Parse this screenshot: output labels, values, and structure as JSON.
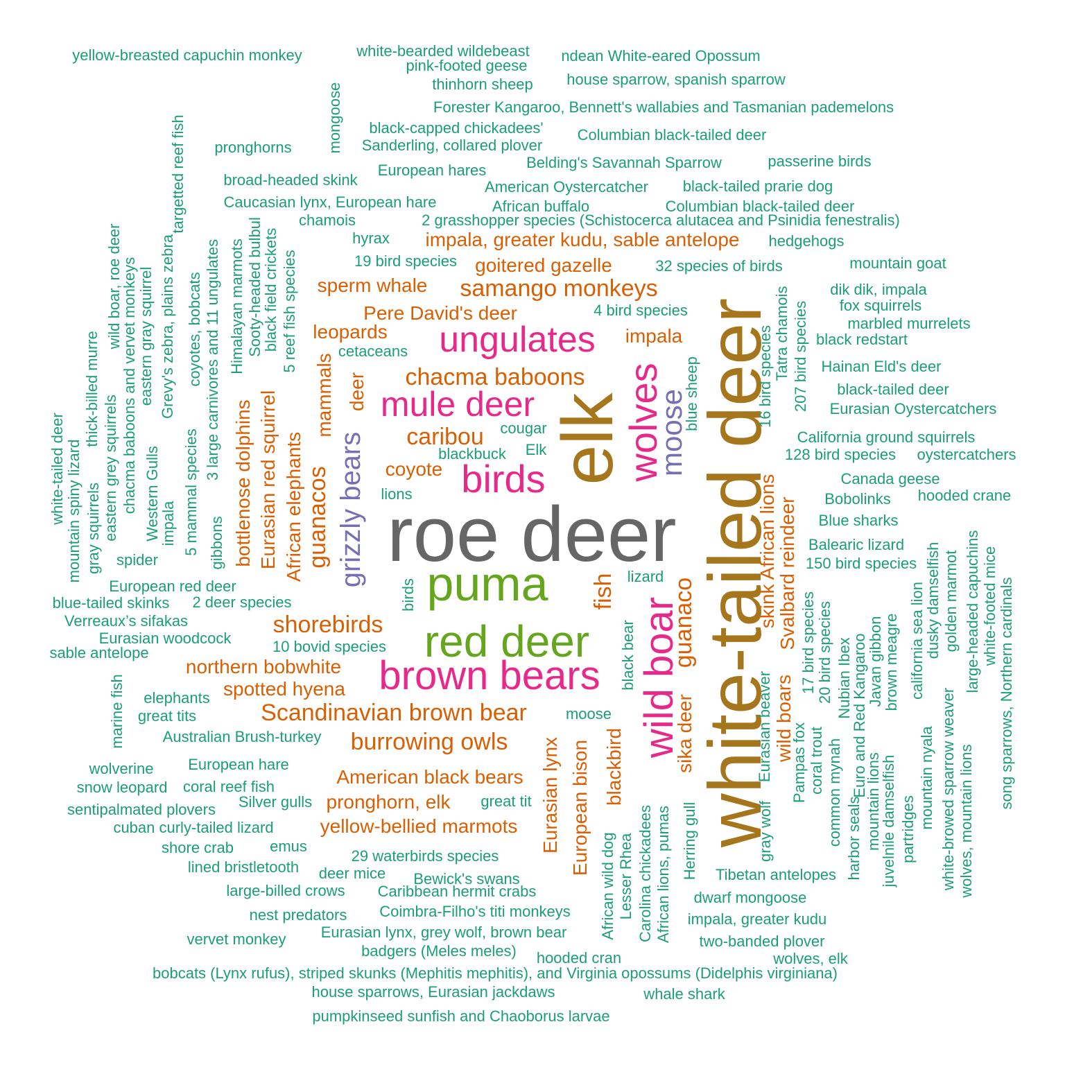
{
  "palette": {
    "grey": "#666666",
    "olive": "#A6761D",
    "green": "#66A61E",
    "pink": "#E7298A",
    "purple": "#7570B3",
    "orange": "#D95F02",
    "teal": "#1B9E77"
  },
  "words": [
    {
      "text": "roe deer",
      "color": "grey",
      "weight": 1.0
    },
    {
      "text": "white-tailed deer",
      "color": "olive",
      "weight": 0.95
    },
    {
      "text": "elk",
      "color": "olive",
      "weight": 0.92
    },
    {
      "text": "puma",
      "color": "green",
      "weight": 0.62
    },
    {
      "text": "red deer",
      "color": "green",
      "weight": 0.58
    },
    {
      "text": "wild boar",
      "color": "pink",
      "weight": 0.55
    },
    {
      "text": "wolves",
      "color": "pink",
      "weight": 0.52
    },
    {
      "text": "brown bears",
      "color": "pink",
      "weight": 0.52
    },
    {
      "text": "birds",
      "color": "pink",
      "weight": 0.5
    },
    {
      "text": "ungulates",
      "color": "pink",
      "weight": 0.46
    },
    {
      "text": "mule deer",
      "color": "pink",
      "weight": 0.45
    },
    {
      "text": "moose",
      "color": "purple",
      "weight": 0.36
    },
    {
      "text": "grizzly bears",
      "color": "purple",
      "weight": 0.36
    },
    {
      "text": "samango monkeys",
      "color": "orange",
      "weight": 0.3
    },
    {
      "text": "chacma baboons",
      "color": "orange",
      "weight": 0.3
    },
    {
      "text": "Scandinavian brown bear",
      "color": "orange",
      "weight": 0.3
    },
    {
      "text": "caribou",
      "color": "orange",
      "weight": 0.3
    },
    {
      "text": "shorebirds",
      "color": "orange",
      "weight": 0.3
    },
    {
      "text": "burrowing owls",
      "color": "orange",
      "weight": 0.3
    },
    {
      "text": "guanacos",
      "color": "orange",
      "weight": 0.3
    },
    {
      "text": "guanaco",
      "color": "orange",
      "weight": 0.3
    },
    {
      "text": "fish",
      "color": "orange",
      "weight": 0.3
    },
    {
      "text": "impala, greater kudu, sable antelope",
      "color": "orange",
      "weight": 0.25
    },
    {
      "text": "goitered gazelle",
      "color": "orange",
      "weight": 0.25
    },
    {
      "text": "sperm whale",
      "color": "orange",
      "weight": 0.25
    },
    {
      "text": "Pere David's deer",
      "color": "orange",
      "weight": 0.25
    },
    {
      "text": "leopards",
      "color": "orange",
      "weight": 0.25
    },
    {
      "text": "impala",
      "color": "orange",
      "weight": 0.25
    },
    {
      "text": "coyote",
      "color": "orange",
      "weight": 0.25
    },
    {
      "text": "northern bobwhite",
      "color": "orange",
      "weight": 0.25
    },
    {
      "text": "spotted hyena",
      "color": "orange",
      "weight": 0.25
    },
    {
      "text": "American black bears",
      "color": "orange",
      "weight": 0.25
    },
    {
      "text": "pronghorn, elk",
      "color": "orange",
      "weight": 0.25
    },
    {
      "text": "yellow-bellied marmots",
      "color": "orange",
      "weight": 0.25
    },
    {
      "text": "mammals",
      "color": "orange",
      "weight": 0.25
    },
    {
      "text": "deer",
      "color": "orange",
      "weight": 0.25
    },
    {
      "text": "bottlenose dolphins",
      "color": "orange",
      "weight": 0.25
    },
    {
      "text": "Eurasian red squirrel",
      "color": "orange",
      "weight": 0.25
    },
    {
      "text": "African elephants",
      "color": "orange",
      "weight": 0.25
    },
    {
      "text": "Eurasian lynx",
      "color": "orange",
      "weight": 0.25
    },
    {
      "text": "European bison",
      "color": "orange",
      "weight": 0.25
    },
    {
      "text": "blackbird",
      "color": "orange",
      "weight": 0.25
    },
    {
      "text": "sika deer",
      "color": "orange",
      "weight": 0.25
    },
    {
      "text": "skink African lions",
      "color": "orange",
      "weight": 0.25
    },
    {
      "text": "Svalbard reindeer",
      "color": "orange",
      "weight": 0.25
    },
    {
      "text": "wild boars",
      "color": "orange",
      "weight": 0.25
    },
    {
      "text": "yellow-breasted capuchin monkey",
      "color": "teal",
      "weight": 0.1
    },
    {
      "text": "white-bearded wildebeast",
      "color": "teal",
      "weight": 0.1
    },
    {
      "text": "ndean White-eared Opossum",
      "color": "teal",
      "weight": 0.1
    },
    {
      "text": "pink-footed geese",
      "color": "teal",
      "weight": 0.1
    },
    {
      "text": "house sparrow, spanish sparrow",
      "color": "teal",
      "weight": 0.1
    },
    {
      "text": "thinhorn sheep",
      "color": "teal",
      "weight": 0.1
    },
    {
      "text": "Forester Kangaroo, Bennett's wallabies and Tasmanian pademelons",
      "color": "teal",
      "weight": 0.1
    },
    {
      "text": "black-capped chickadees'",
      "color": "teal",
      "weight": 0.1
    },
    {
      "text": "Columbian black-tailed deer",
      "color": "teal",
      "weight": 0.1
    },
    {
      "text": "Sanderling, collared plover",
      "color": "teal",
      "weight": 0.1
    },
    {
      "text": "pronghorns",
      "color": "teal",
      "weight": 0.1
    },
    {
      "text": "Belding's Savannah Sparrow",
      "color": "teal",
      "weight": 0.1
    },
    {
      "text": "passerine birds",
      "color": "teal",
      "weight": 0.1
    },
    {
      "text": "European hares",
      "color": "teal",
      "weight": 0.1
    },
    {
      "text": "broad-headed skink",
      "color": "teal",
      "weight": 0.1
    },
    {
      "text": "American Oystercatcher",
      "color": "teal",
      "weight": 0.1
    },
    {
      "text": "black-tailed prarie dog",
      "color": "teal",
      "weight": 0.1
    },
    {
      "text": "Caucasian lynx, European hare",
      "color": "teal",
      "weight": 0.1
    },
    {
      "text": "African buffalo",
      "color": "teal",
      "weight": 0.1
    },
    {
      "text": "Columbian black-tailed deer",
      "color": "teal",
      "weight": 0.1
    },
    {
      "text": "chamois",
      "color": "teal",
      "weight": 0.1
    },
    {
      "text": "2 grasshopper species (Schistocerca alutacea and Psinidia fenestralis)",
      "color": "teal",
      "weight": 0.1
    },
    {
      "text": "hyrax",
      "color": "teal",
      "weight": 0.1
    },
    {
      "text": "hedgehogs",
      "color": "teal",
      "weight": 0.1
    },
    {
      "text": "19 bird species",
      "color": "teal",
      "weight": 0.1
    },
    {
      "text": "32 species of birds",
      "color": "teal",
      "weight": 0.1
    },
    {
      "text": "mountain goat",
      "color": "teal",
      "weight": 0.1
    },
    {
      "text": "dik dik, impala",
      "color": "teal",
      "weight": 0.1
    },
    {
      "text": "fox squirrels",
      "color": "teal",
      "weight": 0.1
    },
    {
      "text": "4 bird species",
      "color": "teal",
      "weight": 0.1
    },
    {
      "text": "marbled murrelets",
      "color": "teal",
      "weight": 0.1
    },
    {
      "text": "black redstart",
      "color": "teal",
      "weight": 0.1
    },
    {
      "text": "cetaceans",
      "color": "teal",
      "weight": 0.1
    },
    {
      "text": "Hainan Eld's deer",
      "color": "teal",
      "weight": 0.1
    },
    {
      "text": "black-tailed deer",
      "color": "teal",
      "weight": 0.1
    },
    {
      "text": "Eurasian Oystercatchers",
      "color": "teal",
      "weight": 0.1
    },
    {
      "text": "cougar",
      "color": "teal",
      "weight": 0.1
    },
    {
      "text": "California ground squirrels",
      "color": "teal",
      "weight": 0.1
    },
    {
      "text": "blackbuck",
      "color": "teal",
      "weight": 0.1
    },
    {
      "text": "Elk",
      "color": "teal",
      "weight": 0.1
    },
    {
      "text": "128 bird species",
      "color": "teal",
      "weight": 0.1
    },
    {
      "text": "oystercatchers",
      "color": "teal",
      "weight": 0.1
    },
    {
      "text": "Canada geese",
      "color": "teal",
      "weight": 0.1
    },
    {
      "text": "lions",
      "color": "teal",
      "weight": 0.1
    },
    {
      "text": "Bobolinks",
      "color": "teal",
      "weight": 0.1
    },
    {
      "text": "hooded crane",
      "color": "teal",
      "weight": 0.1
    },
    {
      "text": "Blue sharks",
      "color": "teal",
      "weight": 0.1
    },
    {
      "text": "Balearic lizard",
      "color": "teal",
      "weight": 0.1
    },
    {
      "text": "spider",
      "color": "teal",
      "weight": 0.1
    },
    {
      "text": "150 bird species",
      "color": "teal",
      "weight": 0.1
    },
    {
      "text": "European red deer",
      "color": "teal",
      "weight": 0.1
    },
    {
      "text": "lizard",
      "color": "teal",
      "weight": 0.1
    },
    {
      "text": "blue-tailed skinks",
      "color": "teal",
      "weight": 0.1
    },
    {
      "text": "2 deer species",
      "color": "teal",
      "weight": 0.1
    },
    {
      "text": "Verreaux’s sifakas",
      "color": "teal",
      "weight": 0.1
    },
    {
      "text": "Eurasian woodcock",
      "color": "teal",
      "weight": 0.1
    },
    {
      "text": "10 bovid species",
      "color": "teal",
      "weight": 0.1
    },
    {
      "text": "sable antelope",
      "color": "teal",
      "weight": 0.1
    },
    {
      "text": "elephants",
      "color": "teal",
      "weight": 0.1
    },
    {
      "text": "great tits",
      "color": "teal",
      "weight": 0.1
    },
    {
      "text": "moose",
      "color": "teal",
      "weight": 0.1
    },
    {
      "text": "Australian Brush-turkey",
      "color": "teal",
      "weight": 0.1
    },
    {
      "text": "wolverine",
      "color": "teal",
      "weight": 0.1
    },
    {
      "text": "European hare",
      "color": "teal",
      "weight": 0.1
    },
    {
      "text": "snow leopard",
      "color": "teal",
      "weight": 0.1
    },
    {
      "text": "coral reef fish",
      "color": "teal",
      "weight": 0.1
    },
    {
      "text": "Silver gulls",
      "color": "teal",
      "weight": 0.1
    },
    {
      "text": "great tit",
      "color": "teal",
      "weight": 0.1
    },
    {
      "text": "sentipalmated plovers",
      "color": "teal",
      "weight": 0.1
    },
    {
      "text": "cuban curly-tailed lizard",
      "color": "teal",
      "weight": 0.1
    },
    {
      "text": "shore crab",
      "color": "teal",
      "weight": 0.1
    },
    {
      "text": "emus",
      "color": "teal",
      "weight": 0.1
    },
    {
      "text": "29 waterbirds species",
      "color": "teal",
      "weight": 0.1
    },
    {
      "text": "lined bristletooth",
      "color": "teal",
      "weight": 0.1
    },
    {
      "text": "deer mice",
      "color": "teal",
      "weight": 0.1
    },
    {
      "text": "Bewick's swans",
      "color": "teal",
      "weight": 0.1
    },
    {
      "text": "Tibetan antelopes",
      "color": "teal",
      "weight": 0.1
    },
    {
      "text": "large-billed crows",
      "color": "teal",
      "weight": 0.1
    },
    {
      "text": "Caribbean hermit crabs",
      "color": "teal",
      "weight": 0.1
    },
    {
      "text": "dwarf mongoose",
      "color": "teal",
      "weight": 0.1
    },
    {
      "text": "nest predators",
      "color": "teal",
      "weight": 0.1
    },
    {
      "text": "Coimbra-Filho's titi monkeys",
      "color": "teal",
      "weight": 0.1
    },
    {
      "text": "impala, greater kudu",
      "color": "teal",
      "weight": 0.1
    },
    {
      "text": "Eurasian lynx, grey wolf, brown bear",
      "color": "teal",
      "weight": 0.1
    },
    {
      "text": "vervet monkey",
      "color": "teal",
      "weight": 0.1
    },
    {
      "text": "two-banded plover",
      "color": "teal",
      "weight": 0.1
    },
    {
      "text": "badgers (Meles meles)",
      "color": "teal",
      "weight": 0.1
    },
    {
      "text": "hooded cran",
      "color": "teal",
      "weight": 0.1
    },
    {
      "text": "wolves, elk",
      "color": "teal",
      "weight": 0.1
    },
    {
      "text": "bobcats (Lynx rufus), striped skunks (Mephitis mephitis), and Virginia opossums (Didelphis virginiana)",
      "color": "teal",
      "weight": 0.1
    },
    {
      "text": "house sparrows, Eurasian jackdaws",
      "color": "teal",
      "weight": 0.1
    },
    {
      "text": "whale shark",
      "color": "teal",
      "weight": 0.1
    },
    {
      "text": "pumpkinseed sunfish and Chaoborus larvae",
      "color": "teal",
      "weight": 0.1
    },
    {
      "text": "mongoose",
      "color": "teal",
      "weight": 0.1
    },
    {
      "text": "targetted reef fish",
      "color": "teal",
      "weight": 0.1
    },
    {
      "text": "wild boar, roe deer",
      "color": "teal",
      "weight": 0.1
    },
    {
      "text": "chacma baboons and vervet monkeys",
      "color": "teal",
      "weight": 0.1
    },
    {
      "text": "eastern gray squirrel",
      "color": "teal",
      "weight": 0.1
    },
    {
      "text": "Grevy's zebra, plains zebra",
      "color": "teal",
      "weight": 0.1
    },
    {
      "text": "coyotes, bobcats",
      "color": "teal",
      "weight": 0.1
    },
    {
      "text": "3 large carnivores and 11 ungulates",
      "color": "teal",
      "weight": 0.1
    },
    {
      "text": "Himalayan marmots",
      "color": "teal",
      "weight": 0.1
    },
    {
      "text": "Sooty-headed bulbul",
      "color": "teal",
      "weight": 0.1
    },
    {
      "text": "black field crickets",
      "color": "teal",
      "weight": 0.1
    },
    {
      "text": "5 reef fish species",
      "color": "teal",
      "weight": 0.1
    },
    {
      "text": "thick-billed murre",
      "color": "teal",
      "weight": 0.1
    },
    {
      "text": "white-tailed deer",
      "color": "teal",
      "weight": 0.1
    },
    {
      "text": "mountain spiny lizard",
      "color": "teal",
      "weight": 0.1
    },
    {
      "text": "gray squirrels",
      "color": "teal",
      "weight": 0.1
    },
    {
      "text": "eastern grey squirrels",
      "color": "teal",
      "weight": 0.1
    },
    {
      "text": "Western Gulls",
      "color": "teal",
      "weight": 0.1
    },
    {
      "text": "impala",
      "color": "teal",
      "weight": 0.1
    },
    {
      "text": "5 mammal species",
      "color": "teal",
      "weight": 0.1
    },
    {
      "text": "gibbons",
      "color": "teal",
      "weight": 0.1
    },
    {
      "text": "birds",
      "color": "teal",
      "weight": 0.1
    },
    {
      "text": "marine fish",
      "color": "teal",
      "weight": 0.1
    },
    {
      "text": "blue sheep",
      "color": "teal",
      "weight": 0.1
    },
    {
      "text": "16 bird species",
      "color": "teal",
      "weight": 0.1
    },
    {
      "text": "Tatra chamois",
      "color": "teal",
      "weight": 0.1
    },
    {
      "text": "207 bird species",
      "color": "teal",
      "weight": 0.1
    },
    {
      "text": "black bear",
      "color": "teal",
      "weight": 0.1
    },
    {
      "text": "African wild dog",
      "color": "teal",
      "weight": 0.1
    },
    {
      "text": "Lesser Rhea",
      "color": "teal",
      "weight": 0.1
    },
    {
      "text": "Carolina chickadees",
      "color": "teal",
      "weight": 0.1
    },
    {
      "text": "African lions, pumas",
      "color": "teal",
      "weight": 0.1
    },
    {
      "text": "Herring gull",
      "color": "teal",
      "weight": 0.1
    },
    {
      "text": "gray wolf",
      "color": "teal",
      "weight": 0.1
    },
    {
      "text": "Eurasian beaver",
      "color": "teal",
      "weight": 0.1
    },
    {
      "text": "Pampas fox",
      "color": "teal",
      "weight": 0.1
    },
    {
      "text": "17 bird species",
      "color": "teal",
      "weight": 0.1
    },
    {
      "text": "coral trout",
      "color": "teal",
      "weight": 0.1
    },
    {
      "text": "20 bird species",
      "color": "teal",
      "weight": 0.1
    },
    {
      "text": "common mynah",
      "color": "teal",
      "weight": 0.1
    },
    {
      "text": "Nubian Ibex",
      "color": "teal",
      "weight": 0.1
    },
    {
      "text": "harbor seals",
      "color": "teal",
      "weight": 0.1
    },
    {
      "text": "Euro and Red Kangaroo",
      "color": "teal",
      "weight": 0.1
    },
    {
      "text": "mountain lions",
      "color": "teal",
      "weight": 0.1
    },
    {
      "text": "Javan gibbon",
      "color": "teal",
      "weight": 0.1
    },
    {
      "text": "juvelnile damselfish",
      "color": "teal",
      "weight": 0.1
    },
    {
      "text": "brown meagre",
      "color": "teal",
      "weight": 0.1
    },
    {
      "text": "partridges",
      "color": "teal",
      "weight": 0.1
    },
    {
      "text": "california sea lion",
      "color": "teal",
      "weight": 0.1
    },
    {
      "text": "mountain nyala",
      "color": "teal",
      "weight": 0.1
    },
    {
      "text": "dusky damselfish",
      "color": "teal",
      "weight": 0.1
    },
    {
      "text": "white-browed sparrow weaver",
      "color": "teal",
      "weight": 0.1
    },
    {
      "text": "golden marmot",
      "color": "teal",
      "weight": 0.1
    },
    {
      "text": "wolves, mountain lions",
      "color": "teal",
      "weight": 0.1
    },
    {
      "text": "large-headed capuchins",
      "color": "teal",
      "weight": 0.1
    },
    {
      "text": "white-footed mice",
      "color": "teal",
      "weight": 0.1
    },
    {
      "text": "song sparrows, Northern cardinals",
      "color": "teal",
      "weight": 0.1
    }
  ]
}
